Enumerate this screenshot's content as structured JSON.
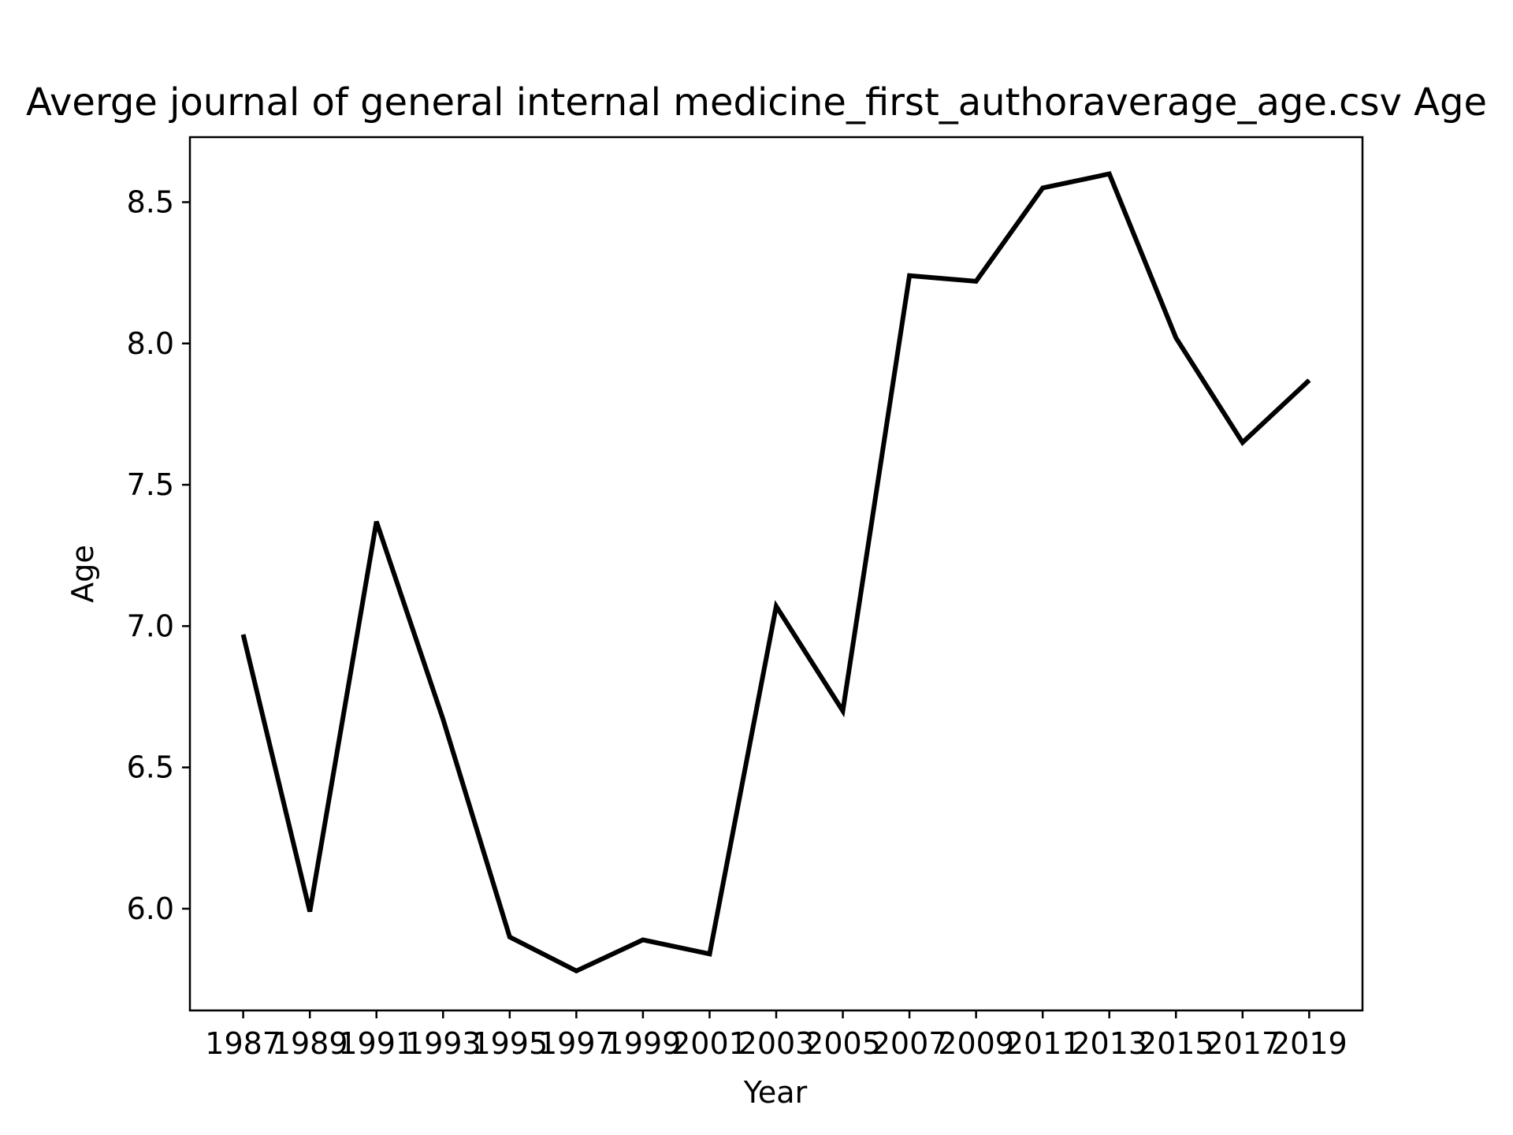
{
  "chart_data": {
    "type": "line",
    "title": "Averge journal of general internal medicine_first_authoraverage_age.csv Age",
    "xlabel": "Year",
    "ylabel": "Age",
    "x": [
      1987,
      1989,
      1991,
      1993,
      1995,
      1997,
      1999,
      2001,
      2003,
      2005,
      2007,
      2009,
      2011,
      2013,
      2015,
      2017,
      2019
    ],
    "x_tick_labels": [
      "1987",
      "1989",
      "1991",
      "1993",
      "1995",
      "1997",
      "1999",
      "2001",
      "2003",
      "2005",
      "2007",
      "2009",
      "2011",
      "2013",
      "2015",
      "2017",
      "2019"
    ],
    "series": [
      {
        "values": [
          6.97,
          5.99,
          7.37,
          6.67,
          5.9,
          5.78,
          5.89,
          5.84,
          7.07,
          6.7,
          8.24,
          8.22,
          8.55,
          8.6,
          8.02,
          7.65,
          7.87
        ]
      }
    ],
    "yticks": [
      6.0,
      6.5,
      7.0,
      7.5,
      8.0,
      8.5
    ],
    "y_tick_labels": [
      "6.0",
      "6.5",
      "7.0",
      "7.5",
      "8.0",
      "8.5"
    ],
    "xlim": [
      1985.4,
      2020.6
    ],
    "ylim": [
      5.64,
      8.73
    ],
    "grid": false,
    "line_color": "#000000"
  }
}
